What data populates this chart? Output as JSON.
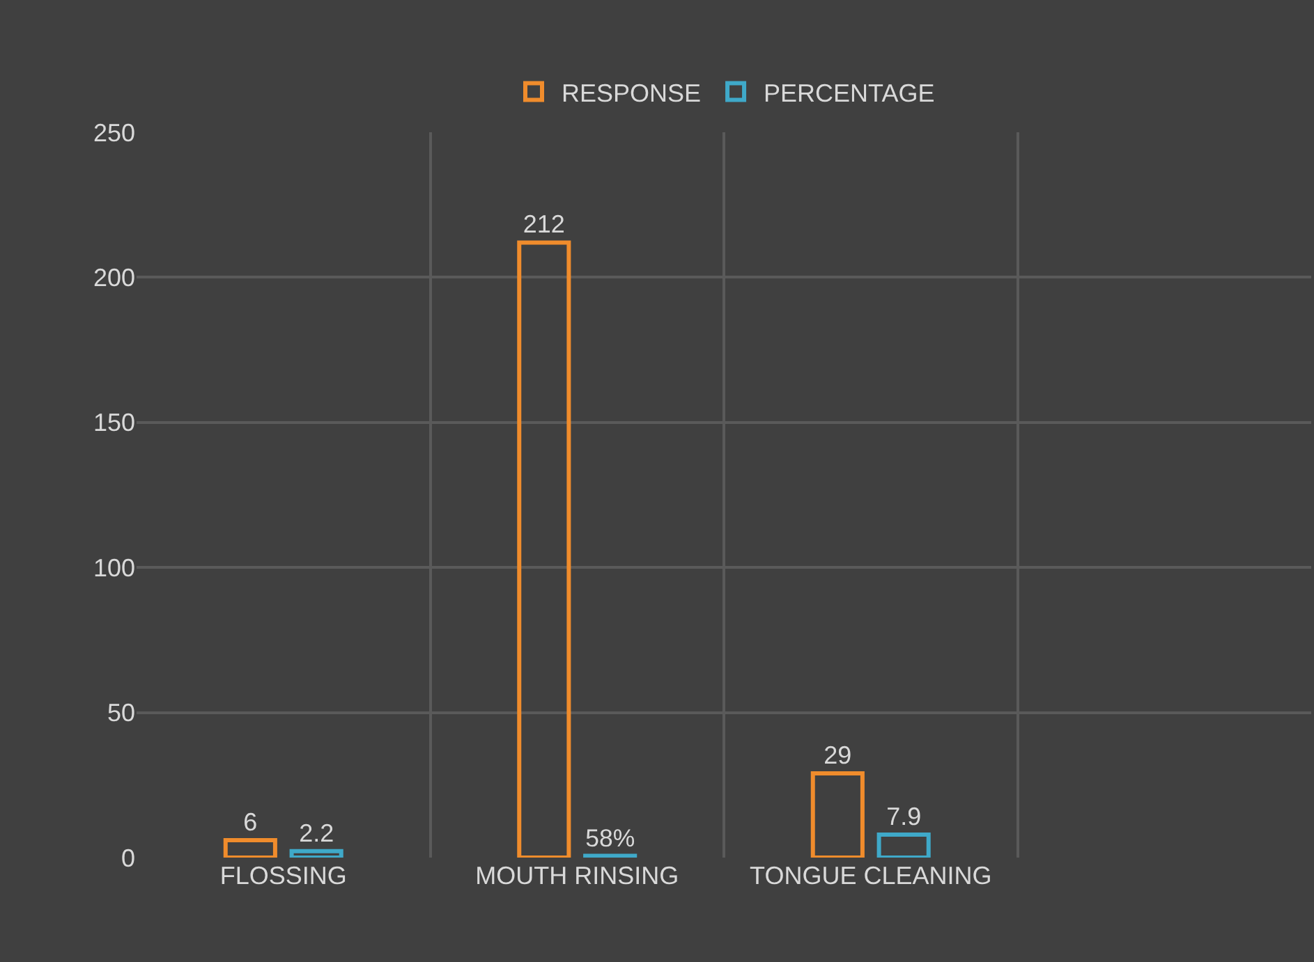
{
  "chart_data": {
    "type": "bar",
    "categories": [
      "FLOSSING",
      "MOUTH RINSING",
      "TONGUE CLEANING",
      null
    ],
    "series": [
      {
        "name": "RESPONSE",
        "color": "#f08c2c",
        "values": [
          6,
          212,
          29,
          null
        ],
        "value_labels": [
          "6",
          "212",
          "29",
          null
        ]
      },
      {
        "name": "PERCENTAGE",
        "color": "#3fa9c9",
        "values": [
          2.2,
          0.58,
          7.9,
          null
        ],
        "value_labels": [
          "2.2",
          "58%",
          "7.9",
          null
        ]
      }
    ],
    "ylim": [
      0,
      250
    ],
    "yticks": [
      0,
      50,
      100,
      150,
      200,
      250
    ],
    "grid": true,
    "legend": "top"
  }
}
